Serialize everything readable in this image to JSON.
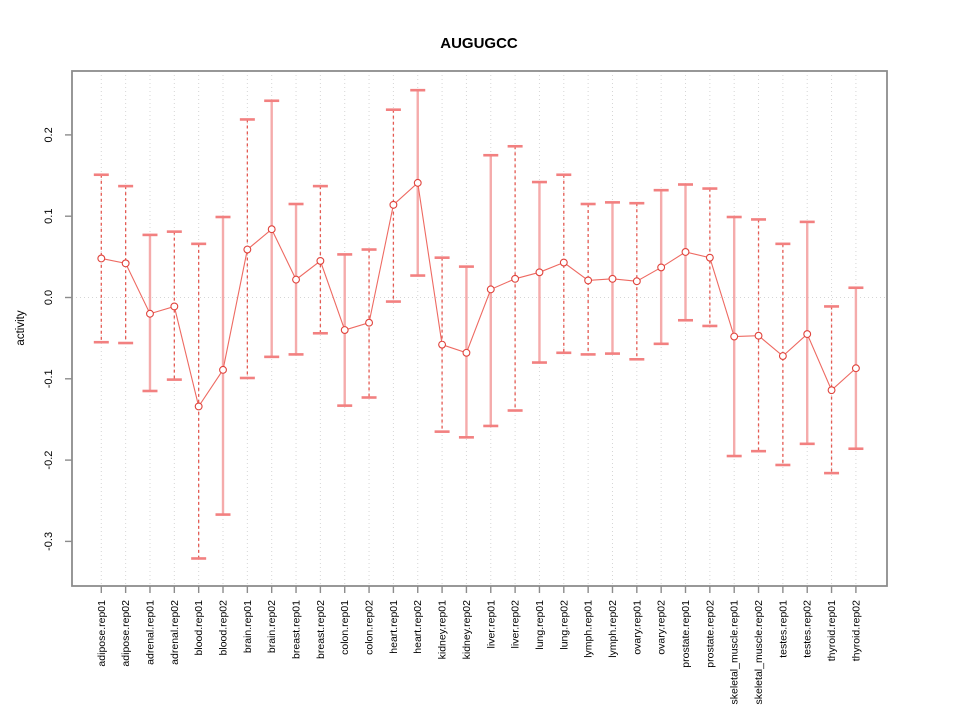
{
  "chart_data": {
    "type": "line",
    "title": "AUGUGCC",
    "xlabel": "",
    "ylabel": "activity",
    "ylim": [
      -0.356,
      0.279
    ],
    "y_ticks": [
      0.2,
      0.1,
      0.0,
      -0.1,
      -0.2,
      -0.3
    ],
    "grid": "vertical dotted gridline at each category; dotted horizontal line at y=0",
    "legend": "none",
    "marker": "open-circle",
    "categories": [
      "adipose.rep01",
      "adipose.rep02",
      "adrenal.rep01",
      "adrenal.rep02",
      "blood.rep01",
      "blood.rep02",
      "brain.rep01",
      "brain.rep02",
      "breast.rep01",
      "breast.rep02",
      "colon.rep01",
      "colon.rep02",
      "heart.rep01",
      "heart.rep02",
      "kidney.rep01",
      "kidney.rep02",
      "liver.rep01",
      "liver.rep02",
      "lung.rep01",
      "lung.rep02",
      "lymph.rep01",
      "lymph.rep02",
      "ovary.rep01",
      "ovary.rep02",
      "prostate.rep01",
      "prostate.rep02",
      "skeletal_muscle.rep01",
      "skeletal_muscle.rep02",
      "testes.rep01",
      "testes.rep02",
      "thyroid.rep01",
      "thyroid.rep02"
    ],
    "series": [
      {
        "name": "activity",
        "values": [
          0.048,
          0.042,
          -0.02,
          -0.011,
          -0.134,
          -0.089,
          0.059,
          0.084,
          0.022,
          0.045,
          -0.04,
          -0.031,
          0.114,
          0.141,
          -0.058,
          -0.068,
          0.01,
          0.023,
          0.031,
          0.043,
          0.021,
          0.023,
          0.02,
          0.037,
          0.056,
          0.049,
          -0.048,
          -0.047,
          -0.072,
          -0.045,
          -0.114,
          -0.087
        ],
        "ci_high": [
          0.151,
          0.137,
          0.077,
          0.081,
          0.066,
          0.099,
          0.219,
          0.242,
          0.115,
          0.137,
          0.053,
          0.059,
          0.231,
          0.255,
          0.049,
          0.038,
          0.175,
          0.186,
          0.142,
          0.151,
          0.115,
          0.117,
          0.116,
          0.132,
          0.139,
          0.134,
          0.099,
          0.096,
          0.066,
          0.093,
          -0.011,
          0.012
        ],
        "ci_low": [
          -0.055,
          -0.056,
          -0.115,
          -0.101,
          -0.321,
          -0.267,
          -0.099,
          -0.073,
          -0.07,
          -0.044,
          -0.133,
          -0.123,
          -0.005,
          0.027,
          -0.165,
          -0.172,
          -0.158,
          -0.139,
          -0.08,
          -0.068,
          -0.07,
          -0.069,
          -0.076,
          -0.057,
          -0.028,
          -0.035,
          -0.195,
          -0.189,
          -0.206,
          -0.18,
          -0.216,
          -0.186
        ],
        "stem_styles": [
          "dashed",
          "dashed",
          "solid",
          "dashed",
          "dashed",
          "solid",
          "dashed",
          "solid",
          "solid",
          "dashed",
          "solid",
          "dashed",
          "dashed",
          "solid",
          "dashed",
          "solid",
          "solid",
          "dashed",
          "solid",
          "dashed",
          "dashed",
          "solid",
          "dashed",
          "solid",
          "solid",
          "dashed",
          "solid",
          "dashed",
          "dashed",
          "solid",
          "dashed",
          "solid"
        ]
      }
    ],
    "colors": {
      "marker": "#e0433c",
      "connect_line": "#ee6a62",
      "error_cap": "#f28080",
      "stem_solid": "#f5abab",
      "stem_dashed": "#e55a52",
      "gridline": "#d6d6d6",
      "frame": "#8c8c8c",
      "text": "#000000"
    }
  }
}
